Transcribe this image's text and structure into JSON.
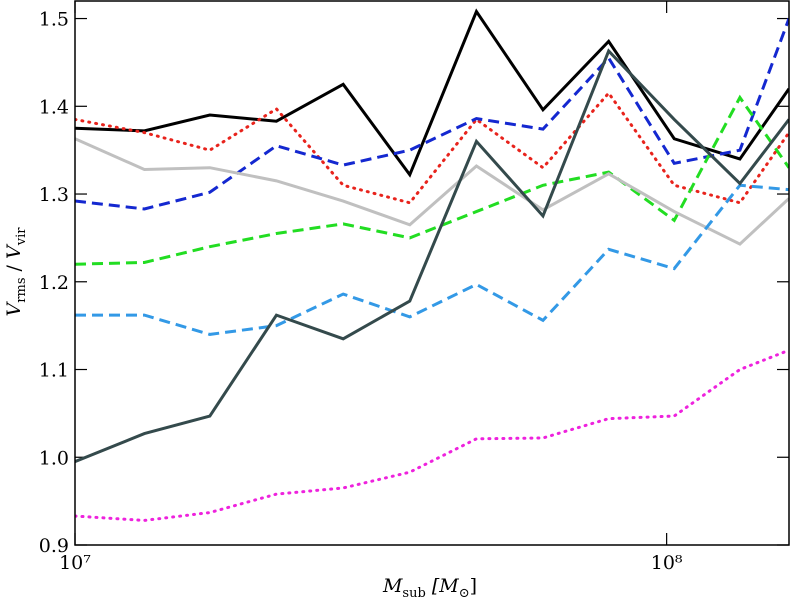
{
  "chart_data": {
    "type": "line",
    "xlabel": [
      "M",
      "sub",
      " [M",
      "⊙",
      "]"
    ],
    "ylabel": [
      "V",
      "rms",
      " / ",
      "V",
      "vir"
    ],
    "xscale": "log",
    "xlim": [
      10000000,
      161000000
    ],
    "ylim": [
      0.9,
      1.52
    ],
    "xticks": [
      {
        "value": 10000000,
        "label": "10⁷"
      },
      {
        "value": 100000000,
        "label": "10⁸"
      }
    ],
    "yticks": [
      0.9,
      {
        "value": 1.0,
        "label": "1.0"
      },
      1.1,
      1.2,
      1.3,
      1.4,
      1.5
    ],
    "x": [
      10000000,
      13100000,
      16900000,
      21900000,
      28400000,
      36800000,
      47700000,
      61800000,
      79800000,
      103000000,
      133000000,
      161000000
    ],
    "series": [
      {
        "color": "#000000",
        "style": "solid",
        "values": [
          1.375,
          1.372,
          1.39,
          1.383,
          1.425,
          1.322,
          1.508,
          1.396,
          1.474,
          1.363,
          1.34,
          1.42
        ]
      },
      {
        "color": "#e8231c",
        "style": "dotted",
        "values": [
          1.385,
          1.37,
          1.35,
          1.397,
          1.31,
          1.29,
          1.385,
          1.33,
          1.415,
          1.31,
          1.29,
          1.37
        ]
      },
      {
        "color": "#1428d0",
        "style": "dashed",
        "values": [
          1.292,
          1.283,
          1.302,
          1.355,
          1.333,
          1.35,
          1.386,
          1.374,
          1.455,
          1.335,
          1.35,
          1.5
        ]
      },
      {
        "color": "#22dd22",
        "style": "dashed",
        "values": [
          1.22,
          1.222,
          1.24,
          1.255,
          1.266,
          1.25,
          1.28,
          1.31,
          1.325,
          1.27,
          1.41,
          1.33
        ]
      },
      {
        "color": "#c0c0c0",
        "style": "solid",
        "values": [
          1.363,
          1.328,
          1.33,
          1.315,
          1.292,
          1.265,
          1.332,
          1.282,
          1.323,
          1.28,
          1.243,
          1.295
        ]
      },
      {
        "color": "#3399e6",
        "style": "dashed",
        "values": [
          1.162,
          1.162,
          1.14,
          1.15,
          1.186,
          1.16,
          1.197,
          1.156,
          1.237,
          1.215,
          1.31,
          1.305
        ]
      },
      {
        "color": "#344a4c",
        "style": "solid",
        "values": [
          0.995,
          1.027,
          1.047,
          1.162,
          1.135,
          1.178,
          1.36,
          1.275,
          1.463,
          1.385,
          1.312,
          1.385
        ]
      },
      {
        "color": "#ee22dd",
        "style": "dotted",
        "values": [
          0.933,
          0.928,
          0.937,
          0.958,
          0.965,
          0.983,
          1.021,
          1.022,
          1.044,
          1.047,
          1.1,
          1.122
        ]
      }
    ]
  }
}
